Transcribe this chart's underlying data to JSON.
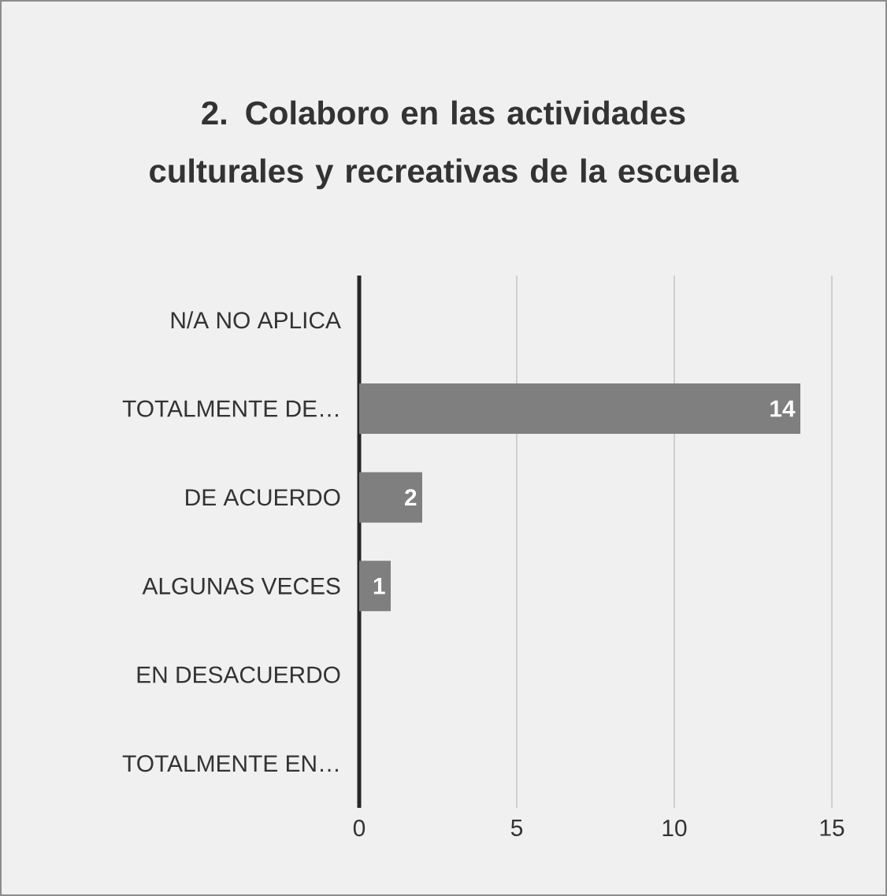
{
  "chart_data": {
    "type": "bar",
    "orientation": "horizontal",
    "title": "2. Colaboro en las actividades culturales y recreativas de la escuela",
    "categories": [
      "N/A NO APLICA",
      "TOTALMENTE DE…",
      "DE ACUERDO",
      "ALGUNAS VECES",
      "EN DESACUERDO",
      "TOTALMENTE EN…"
    ],
    "values": [
      0,
      14,
      2,
      1,
      0,
      0
    ],
    "value_labels": [
      null,
      "14",
      "2",
      "1",
      null,
      null
    ],
    "color": "#7f7f7f",
    "xlim": [
      0,
      15
    ],
    "xticks": [
      0,
      5,
      10,
      15
    ],
    "grid": "x"
  }
}
